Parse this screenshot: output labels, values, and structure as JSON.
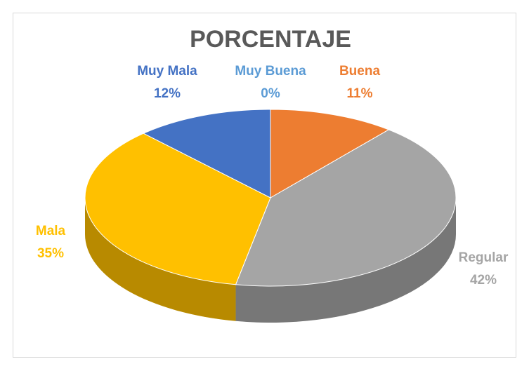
{
  "chart_data": {
    "type": "pie",
    "title": "PORCENTAJE",
    "categories": [
      "Muy Buena",
      "Buena",
      "Regular",
      "Mala",
      "Muy Mala"
    ],
    "values": [
      0,
      11,
      42,
      35,
      12
    ],
    "value_labels": [
      "0%",
      "11%",
      "42%",
      "35%",
      "12%"
    ],
    "colors": [
      "#5b9bd5",
      "#ed7d31",
      "#a5a5a5",
      "#ffc000",
      "#4472c4"
    ]
  }
}
